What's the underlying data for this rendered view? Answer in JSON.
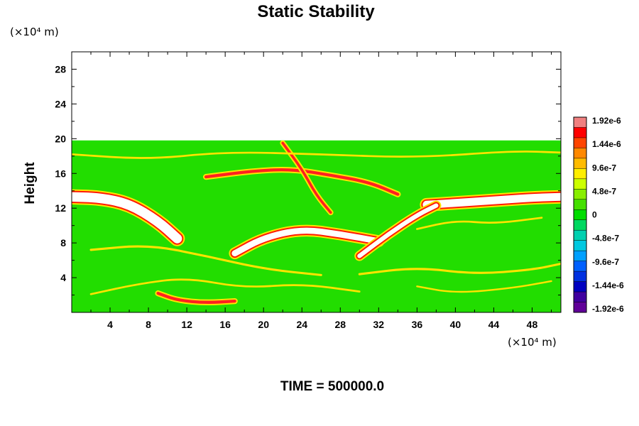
{
  "chart_data": {
    "type": "heatmap",
    "title": "Static Stability",
    "ylabel": "Height",
    "x_unit_label": "(×10⁴ m)",
    "y_unit_label": "(×10⁴ m)",
    "xlim": [
      0,
      51
    ],
    "ylim": [
      0,
      30
    ],
    "x_ticks": [
      4,
      8,
      12,
      16,
      20,
      24,
      28,
      32,
      36,
      40,
      44,
      48
    ],
    "x_tick_labels": [
      "4",
      "8",
      "12",
      "16",
      "20",
      "24",
      "28",
      "32",
      "36",
      "40",
      "44",
      "48"
    ],
    "y_ticks": [
      4,
      8,
      12,
      16,
      20,
      24,
      28
    ],
    "y_tick_labels": [
      "4",
      "8",
      "12",
      "16",
      "20",
      "24",
      "28"
    ],
    "data_top": 19.8,
    "background_value": 0,
    "colorbar": {
      "labels": [
        "1.92e-6",
        "1.44e-6",
        "9.6e-7",
        "4.8e-7",
        "0",
        "-4.8e-7",
        "-9.6e-7",
        "-1.44e-6",
        "-1.92e-6"
      ],
      "min": -1.92e-06,
      "max": 1.92e-06,
      "colors": [
        "#f08080",
        "#ff0000",
        "#ff4400",
        "#ff8800",
        "#ffbb00",
        "#ffee00",
        "#ccff00",
        "#88ee00",
        "#44e000",
        "#00dd00",
        "#00d860",
        "#00d0b0",
        "#00c8e0",
        "#00a0ff",
        "#0060ff",
        "#0030e0",
        "#0000c0",
        "#4000a0",
        "#600098"
      ]
    },
    "features": [
      {
        "kind": "band",
        "name": "high stability layer (left)",
        "points": [
          [
            0,
            13.3
          ],
          [
            3,
            13.2
          ],
          [
            6,
            12.5
          ],
          [
            9,
            10.5
          ],
          [
            11,
            8.5
          ]
        ],
        "width": 1.1,
        "color": "#ffffff"
      },
      {
        "kind": "band",
        "name": "high stability layer (right)",
        "points": [
          [
            37,
            12.4
          ],
          [
            40,
            12.6
          ],
          [
            44,
            12.9
          ],
          [
            48,
            13.2
          ],
          [
            51,
            13.3
          ]
        ],
        "width": 0.9,
        "color": "#ffffff"
      },
      {
        "kind": "band",
        "name": "central arc",
        "points": [
          [
            17,
            6.8
          ],
          [
            20,
            8.6
          ],
          [
            24,
            9.6
          ],
          [
            28,
            9.0
          ],
          [
            32,
            8.2
          ]
        ],
        "width": 0.7,
        "color": "#ffffff"
      },
      {
        "kind": "band",
        "name": "rising arm",
        "points": [
          [
            30,
            6.5
          ],
          [
            33,
            9
          ],
          [
            36,
            11.2
          ],
          [
            38,
            12.3
          ]
        ],
        "width": 0.5,
        "color": "#ffffff"
      },
      {
        "kind": "band",
        "name": "upper streak",
        "points": [
          [
            14,
            15.6
          ],
          [
            19,
            16.3
          ],
          [
            23,
            16.5
          ],
          [
            27,
            15.8
          ],
          [
            31,
            15.0
          ],
          [
            34,
            13.6
          ]
        ],
        "width": 0.35,
        "color": "#ff2020"
      },
      {
        "kind": "band",
        "name": "diagonal streak",
        "points": [
          [
            22,
            19.5
          ],
          [
            24,
            16.5
          ],
          [
            25.5,
            13.5
          ],
          [
            27,
            11.5
          ]
        ],
        "width": 0.3,
        "color": "#ff2020"
      },
      {
        "kind": "band",
        "name": "lower left swirl",
        "points": [
          [
            9,
            2.2
          ],
          [
            11,
            1.4
          ],
          [
            14,
            1.1
          ],
          [
            17,
            1.3
          ]
        ],
        "width": 0.35,
        "color": "#ff2020"
      },
      {
        "kind": "band",
        "name": "yellow wave 1",
        "points": [
          [
            2,
            7.2
          ],
          [
            8,
            7.8
          ],
          [
            14,
            6.5
          ],
          [
            20,
            5.0
          ],
          [
            26,
            4.3
          ]
        ],
        "width": 0.25,
        "color": "#ffe400"
      },
      {
        "kind": "band",
        "name": "yellow wave 2",
        "points": [
          [
            30,
            4.4
          ],
          [
            36,
            5.2
          ],
          [
            42,
            4.4
          ],
          [
            48,
            4.9
          ],
          [
            51,
            5.6
          ]
        ],
        "width": 0.25,
        "color": "#ffe400"
      },
      {
        "kind": "band",
        "name": "yellow wave 3",
        "points": [
          [
            0,
            18.2
          ],
          [
            8,
            17.6
          ],
          [
            16,
            18.5
          ],
          [
            26,
            18.2
          ],
          [
            36,
            17.8
          ],
          [
            46,
            18.6
          ],
          [
            51,
            18.4
          ]
        ],
        "width": 0.22,
        "color": "#ffe400"
      },
      {
        "kind": "band",
        "name": "yellow wave 4",
        "points": [
          [
            36,
            9.6
          ],
          [
            40,
            10.6
          ],
          [
            44,
            10.2
          ],
          [
            49,
            10.9
          ]
        ],
        "width": 0.22,
        "color": "#ffe400"
      },
      {
        "kind": "band",
        "name": "yellow wave 5",
        "points": [
          [
            2,
            2.1
          ],
          [
            7,
            3.3
          ],
          [
            12,
            4.0
          ],
          [
            18,
            2.8
          ],
          [
            24,
            3.3
          ],
          [
            30,
            2.4
          ]
        ],
        "width": 0.22,
        "color": "#ffe400"
      },
      {
        "kind": "band",
        "name": "yellow wave 6",
        "points": [
          [
            36,
            3.0
          ],
          [
            40,
            2.2
          ],
          [
            46,
            2.8
          ],
          [
            50,
            3.6
          ]
        ],
        "width": 0.2,
        "color": "#ffe400"
      }
    ]
  },
  "footer": {
    "time_label": "TIME = 500000.0"
  }
}
